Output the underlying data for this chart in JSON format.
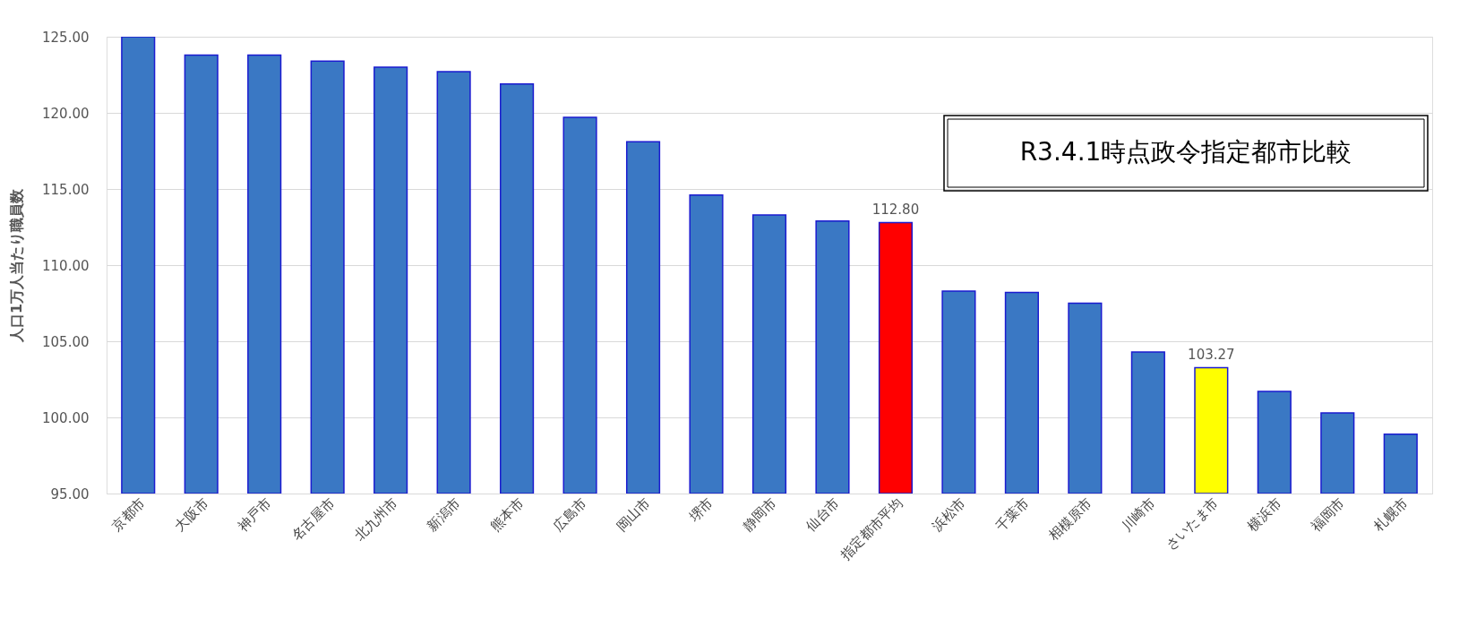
{
  "chart_data": {
    "type": "bar",
    "title": "R3.4.1時点政令指定都市比較",
    "ylabel": "人口1万人当たり職員数",
    "categories": [
      "京都市",
      "大阪市",
      "神戸市",
      "名古屋市",
      "北九州市",
      "新潟市",
      "熊本市",
      "広島市",
      "岡山市",
      "堺市",
      "静岡市",
      "仙台市",
      "指定都市平均",
      "浜松市",
      "千葉市",
      "相模原市",
      "川崎市",
      "さいたま市",
      "横浜市",
      "福岡市",
      "札幌市"
    ],
    "values": [
      125.0,
      123.8,
      123.8,
      123.4,
      123.0,
      122.7,
      121.9,
      119.7,
      118.1,
      114.6,
      113.3,
      112.9,
      112.8,
      108.3,
      108.2,
      107.5,
      104.3,
      103.27,
      101.7,
      100.3,
      98.9
    ],
    "colors": [
      "#3a78c4",
      "#3a78c4",
      "#3a78c4",
      "#3a78c4",
      "#3a78c4",
      "#3a78c4",
      "#3a78c4",
      "#3a78c4",
      "#3a78c4",
      "#3a78c4",
      "#3a78c4",
      "#3a78c4",
      "#ff0000",
      "#3a78c4",
      "#3a78c4",
      "#3a78c4",
      "#3a78c4",
      "#ffff00",
      "#3a78c4",
      "#3a78c4",
      "#3a78c4"
    ],
    "value_labels": [
      null,
      null,
      null,
      null,
      null,
      null,
      null,
      null,
      null,
      null,
      null,
      null,
      "112.80",
      null,
      null,
      null,
      null,
      "103.27",
      null,
      null,
      null
    ],
    "ylim": [
      95,
      125
    ],
    "yticks": [
      {
        "value": 95,
        "label": "95.00"
      },
      {
        "value": 100,
        "label": "100.00"
      },
      {
        "value": 105,
        "label": "105.00"
      },
      {
        "value": 110,
        "label": "110.00"
      },
      {
        "value": 115,
        "label": "115.00"
      },
      {
        "value": 120,
        "label": "120.00"
      },
      {
        "value": 125,
        "label": "125.00"
      }
    ],
    "grid": "y"
  }
}
